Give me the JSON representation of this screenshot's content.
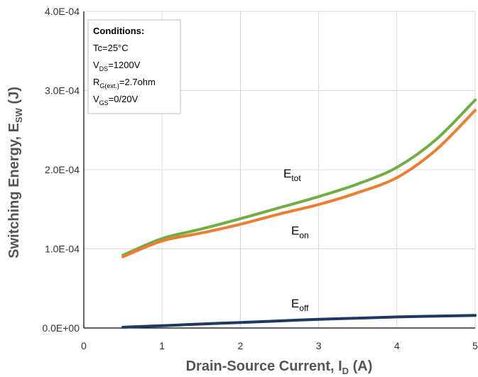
{
  "chart_data": {
    "type": "line",
    "xlabel": "Drain-Source Current, I",
    "xlabel_sub": "D",
    "xlabel_suffix": " (A)",
    "ylabel": "Switching Energy, E",
    "ylabel_sub": "SW",
    "ylabel_suffix": " (J)",
    "xlim": [
      0,
      5
    ],
    "ylim": [
      0,
      0.0004
    ],
    "x_ticks": [
      "0",
      "1",
      "2",
      "3",
      "4",
      "5"
    ],
    "y_ticks": [
      "0.0E+00",
      "1.0E-04",
      "2.0E-04",
      "3.0E-04",
      "4.0E-04"
    ],
    "grid": true,
    "series": [
      {
        "name": "E_tot",
        "label_main": "E",
        "label_sub": "tot",
        "color": "#70ad47",
        "x": [
          0.5,
          1.0,
          1.5,
          2.0,
          2.5,
          3.0,
          3.5,
          4.0,
          4.5,
          5.0
        ],
        "y": [
          9.2e-05,
          0.000113,
          0.000125,
          0.000138,
          0.000152,
          0.000166,
          0.000182,
          0.000203,
          0.000238,
          0.000288
        ]
      },
      {
        "name": "E_on",
        "label_main": "E",
        "label_sub": "on",
        "color": "#ed7d31",
        "x": [
          0.5,
          1.0,
          1.5,
          2.0,
          2.5,
          3.0,
          3.5,
          4.0,
          4.5,
          5.0
        ],
        "y": [
          9e-05,
          0.00011,
          0.00012,
          0.000131,
          0.000144,
          0.000156,
          0.000171,
          0.00019,
          0.000225,
          0.000275
        ]
      },
      {
        "name": "E_off",
        "label_main": "E",
        "label_sub": "off",
        "color": "#1f3864",
        "x": [
          0.5,
          1.0,
          1.5,
          2.0,
          2.5,
          3.0,
          3.5,
          4.0,
          4.5,
          5.0
        ],
        "y": [
          1e-06,
          3e-06,
          5e-06,
          7e-06,
          9e-06,
          1.1e-05,
          1.25e-05,
          1.4e-05,
          1.5e-05,
          1.6e-05
        ]
      }
    ],
    "conditions": {
      "title": "Conditions:",
      "lines": [
        {
          "main": "Tc=25°C",
          "sub": "",
          "rest": ""
        },
        {
          "main": "V",
          "sub": "DS",
          "rest": "=1200V"
        },
        {
          "main": "R",
          "sub": "G(ext.)",
          "rest": "=2.7ohm"
        },
        {
          "main": "V",
          "sub": "GS",
          "rest": "=0/20V"
        }
      ]
    }
  }
}
